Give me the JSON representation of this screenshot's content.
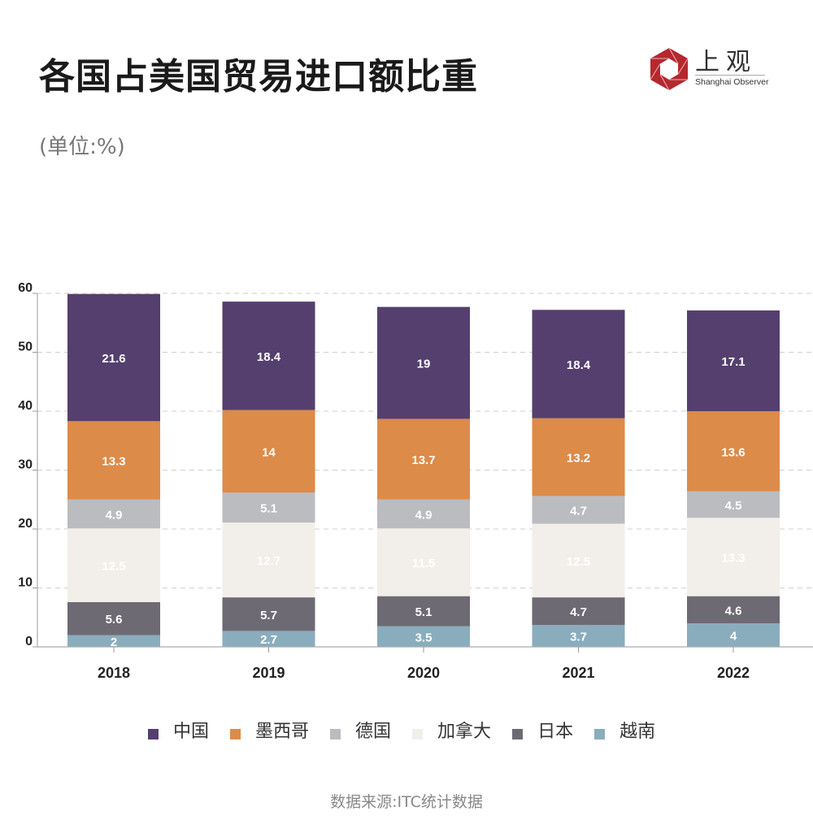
{
  "header": {
    "title": "各国占美国贸易进口额比重",
    "unit": "(单位:%)"
  },
  "logo": {
    "name_cn": "上观",
    "name_en": "Shanghai Observer",
    "color": "#b5282e"
  },
  "source": "数据来源:ITC统计数据",
  "chart_data": {
    "type": "bar",
    "stacked": true,
    "title": "各国占美国贸易进口额比重",
    "subtitle": "(单位:%)",
    "xlabel": "",
    "ylabel": "",
    "categories": [
      "2018",
      "2019",
      "2020",
      "2021",
      "2022"
    ],
    "ylim": [
      0,
      60
    ],
    "yticks": [
      0,
      10,
      20,
      30,
      40,
      50,
      60
    ],
    "grid": true,
    "legend_position": "bottom",
    "series": [
      {
        "name": "越南",
        "color": "#8aadbd",
        "label_color": "#ffffff",
        "values": [
          2,
          2.7,
          3.5,
          3.7,
          4
        ]
      },
      {
        "name": "日本",
        "color": "#6e6a74",
        "label_color": "#ffffff",
        "values": [
          5.6,
          5.7,
          5.1,
          4.7,
          4.6
        ]
      },
      {
        "name": "加拿大",
        "color": "#f2eeea",
        "label_color": "#ffffff",
        "values": [
          12.5,
          12.7,
          11.5,
          12.5,
          13.3
        ]
      },
      {
        "name": "德国",
        "color": "#bbbcc0",
        "label_color": "#ffffff",
        "values": [
          4.9,
          5.1,
          4.9,
          4.7,
          4.5
        ]
      },
      {
        "name": "墨西哥",
        "color": "#dc8b49",
        "label_color": "#ffffff",
        "values": [
          13.3,
          14,
          13.7,
          13.2,
          13.6
        ]
      },
      {
        "name": "中国",
        "color": "#553f6e",
        "label_color": "#ffffff",
        "values": [
          21.6,
          18.4,
          19,
          18.4,
          17.1
        ]
      }
    ],
    "legend_order": [
      "中国",
      "墨西哥",
      "德国",
      "加拿大",
      "日本",
      "越南"
    ]
  }
}
